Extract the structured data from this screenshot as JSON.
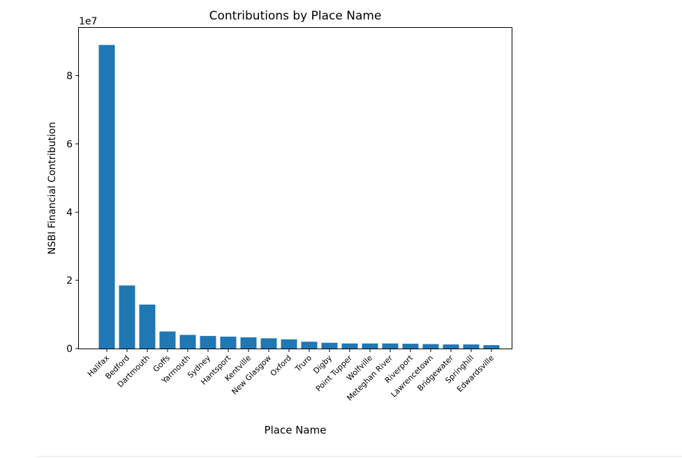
{
  "chart_data": {
    "type": "bar",
    "title": "Contributions by Place Name",
    "xlabel": "Place Name",
    "ylabel": "NSBI Financial Contribution",
    "offset_label": "1e7",
    "ylim": [
      0,
      94000000
    ],
    "yticks": [
      0,
      20000000,
      40000000,
      60000000,
      80000000
    ],
    "ytick_labels": [
      "0",
      "2",
      "4",
      "6",
      "8"
    ],
    "grid": false,
    "bar_color": "#1f77b4",
    "categories": [
      "Halifax",
      "Bedford",
      "Dartmouth",
      "Goffs",
      "Yarmouth",
      "Sydney",
      "Hantsport",
      "Kentville",
      "New Glasgow",
      "Oxford",
      "Truro",
      "Digby",
      "Point Tupper",
      "Wolfville",
      "Meteghan River",
      "Riverport",
      "Lawrencetown",
      "Bridgewater",
      "Springhill",
      "Edwardsville"
    ],
    "values": [
      89000000,
      18500000,
      12900000,
      5000000,
      4000000,
      3700000,
      3500000,
      3300000,
      3000000,
      2700000,
      2000000,
      1700000,
      1500000,
      1500000,
      1500000,
      1400000,
      1300000,
      1200000,
      1200000,
      1000000
    ]
  }
}
